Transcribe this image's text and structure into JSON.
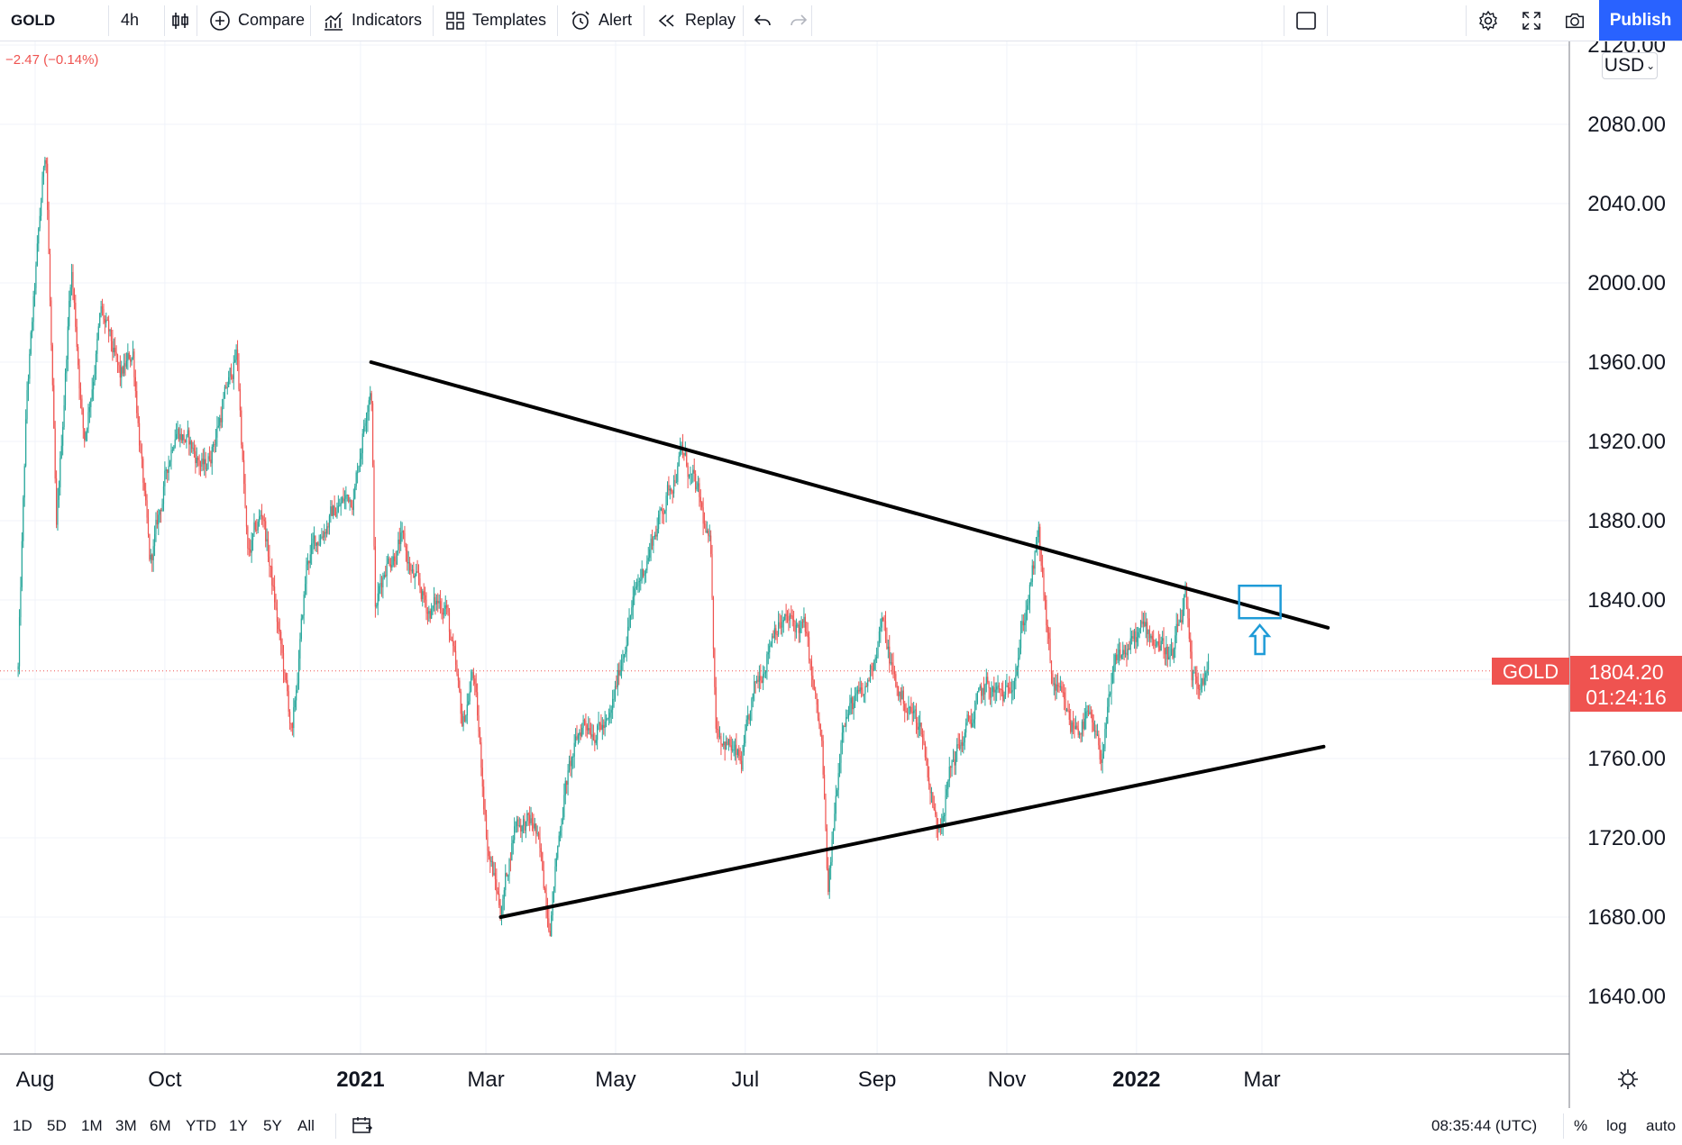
{
  "toolbar": {
    "symbol": "GOLD",
    "interval": "4h",
    "compare_label": "Compare",
    "indicators_label": "Indicators",
    "templates_label": "Templates",
    "alert_label": "Alert",
    "replay_label": "Replay",
    "publish_label": "Publish"
  },
  "header": {
    "change": "−2.47 (−0.14%)"
  },
  "currency": "USD",
  "price_tag": {
    "symbol": "GOLD",
    "price": "1804.20",
    "countdown": "01:24:16",
    "color": "#ef5350"
  },
  "colors": {
    "up": "#26a69a",
    "down": "#ef5350",
    "accent": "#2962ff",
    "annotation": "#1e9bd7"
  },
  "bottom_bar": {
    "ranges": [
      "1D",
      "5D",
      "1M",
      "3M",
      "6M",
      "YTD",
      "1Y",
      "5Y",
      "All"
    ],
    "time": "08:35:44 (UTC)",
    "percent": "%",
    "log": "log",
    "auto": "auto"
  },
  "chart_data": {
    "type": "candlestick",
    "title": "GOLD",
    "interval": "4h",
    "currency": "USD",
    "x_ticks": [
      "Aug",
      "Oct",
      "2021",
      "Mar",
      "May",
      "Jul",
      "Sep",
      "Nov",
      "2022",
      "Mar"
    ],
    "bold_x_ticks": [
      "2021",
      "2022"
    ],
    "y_ticks": [
      2120,
      2080,
      2040,
      2000,
      1960,
      1920,
      1880,
      1840,
      1800,
      1760,
      1720,
      1680,
      1640
    ],
    "y_tick_labels": [
      "2120.00",
      "2080.00",
      "2040.00",
      "2000.00",
      "1960.00",
      "1920.00",
      "1880.00",
      "1840.00",
      "1760.00",
      "1720.00",
      "1680.00",
      "1640.00"
    ],
    "ylim": [
      1612,
      2142
    ],
    "last_price": 1804.2,
    "price_path": [
      [
        "2020-07-24",
        1805
      ],
      [
        "2020-07-28",
        1940
      ],
      [
        "2020-08-06",
        2072
      ],
      [
        "2020-08-11",
        1870
      ],
      [
        "2020-08-18",
        2010
      ],
      [
        "2020-08-24",
        1920
      ],
      [
        "2020-09-01",
        1985
      ],
      [
        "2020-09-10",
        1950
      ],
      [
        "2020-09-16",
        1965
      ],
      [
        "2020-09-24",
        1855
      ],
      [
        "2020-10-06",
        1930
      ],
      [
        "2020-10-20",
        1905
      ],
      [
        "2020-11-04",
        1965
      ],
      [
        "2020-11-09",
        1860
      ],
      [
        "2020-11-16",
        1885
      ],
      [
        "2020-11-30",
        1770
      ],
      [
        "2020-12-07",
        1860
      ],
      [
        "2020-12-16",
        1880
      ],
      [
        "2020-12-29",
        1895
      ],
      [
        "2021-01-06",
        1955
      ],
      [
        "2021-01-08",
        1835
      ],
      [
        "2021-01-13",
        1860
      ],
      [
        "2021-01-20",
        1870
      ],
      [
        "2021-01-26",
        1850
      ],
      [
        "2021-02-02",
        1835
      ],
      [
        "2021-02-10",
        1840
      ],
      [
        "2021-02-18",
        1775
      ],
      [
        "2021-02-23",
        1805
      ],
      [
        "2021-03-02",
        1715
      ],
      [
        "2021-03-08",
        1683
      ],
      [
        "2021-03-15",
        1730
      ],
      [
        "2021-03-24",
        1725
      ],
      [
        "2021-03-31",
        1680
      ],
      [
        "2021-04-07",
        1745
      ],
      [
        "2021-04-16",
        1780
      ],
      [
        "2021-04-28",
        1775
      ],
      [
        "2021-05-07",
        1830
      ],
      [
        "2021-05-18",
        1870
      ],
      [
        "2021-06-01",
        1915
      ],
      [
        "2021-06-09",
        1890
      ],
      [
        "2021-06-15",
        1860
      ],
      [
        "2021-06-17",
        1780
      ],
      [
        "2021-06-29",
        1755
      ],
      [
        "2021-07-06",
        1795
      ],
      [
        "2021-07-15",
        1830
      ],
      [
        "2021-07-29",
        1825
      ],
      [
        "2021-08-06",
        1765
      ],
      [
        "2021-08-09",
        1690
      ],
      [
        "2021-08-16",
        1785
      ],
      [
        "2021-08-26",
        1790
      ],
      [
        "2021-09-03",
        1830
      ],
      [
        "2021-09-10",
        1795
      ],
      [
        "2021-09-22",
        1775
      ],
      [
        "2021-09-29",
        1725
      ],
      [
        "2021-10-07",
        1760
      ],
      [
        "2021-10-22",
        1795
      ],
      [
        "2021-11-01",
        1790
      ],
      [
        "2021-11-09",
        1830
      ],
      [
        "2021-11-16",
        1870
      ],
      [
        "2021-11-22",
        1800
      ],
      [
        "2021-12-01",
        1775
      ],
      [
        "2021-12-09",
        1780
      ],
      [
        "2021-12-15",
        1760
      ],
      [
        "2021-12-23",
        1810
      ],
      [
        "2022-01-05",
        1825
      ],
      [
        "2022-01-12",
        1820
      ],
      [
        "2022-01-18",
        1810
      ],
      [
        "2022-01-24",
        1840
      ],
      [
        "2022-01-27",
        1795
      ],
      [
        "2022-02-01",
        1800
      ],
      [
        "2022-02-04",
        1804
      ]
    ],
    "trendlines": [
      {
        "name": "descending-resistance",
        "points": [
          [
            "2021-01-06",
            1960
          ],
          [
            "2022-04-01",
            1826
          ]
        ]
      },
      {
        "name": "ascending-support",
        "points": [
          [
            "2021-03-08",
            1680
          ],
          [
            "2022-03-30",
            1766
          ]
        ]
      }
    ],
    "annotations": [
      {
        "name": "breakout-box",
        "x": "2022-02-28",
        "y": 1839
      },
      {
        "name": "breakout-arrow",
        "x": "2022-02-28",
        "y": 1820
      }
    ]
  }
}
